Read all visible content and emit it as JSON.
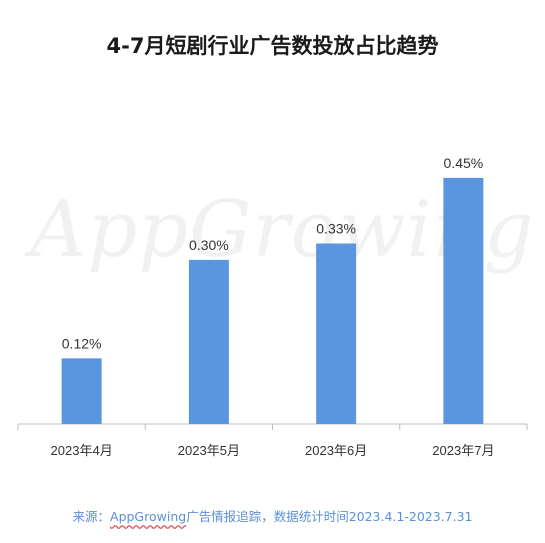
{
  "source": {
    "prefix": "来源：",
    "brand": "AppGrowing",
    "suffix": "广告情报追踪，数据统计时间2023.4.1-2023.7.31"
  },
  "watermark": "AppGrowing",
  "chart_data": {
    "type": "bar",
    "title": "4-7月短剧行业广告数投放占比趋势",
    "categories": [
      "2023年4月",
      "2023年5月",
      "2023年6月",
      "2023年7月"
    ],
    "values": [
      0.12,
      0.3,
      0.33,
      0.45
    ],
    "data_labels": [
      "0.12%",
      "0.30%",
      "0.33%",
      "0.45%"
    ],
    "unit": "%",
    "ylim": [
      0,
      0.5
    ],
    "grid": false,
    "legend": "none",
    "color": "#5b95e0"
  }
}
